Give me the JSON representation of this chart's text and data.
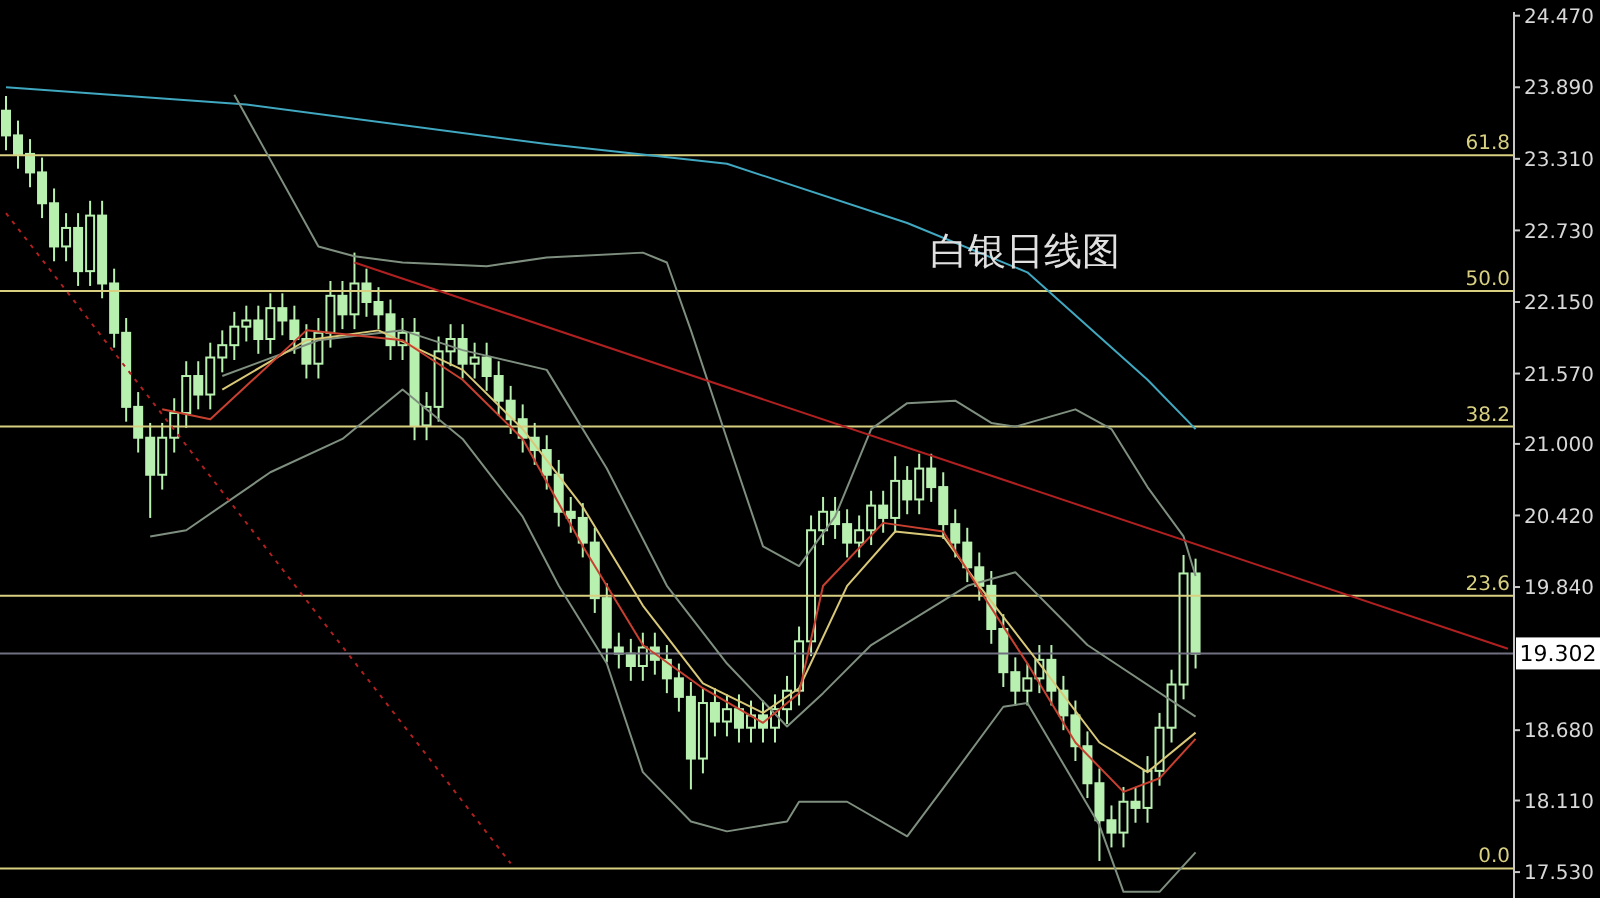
{
  "chart_data": {
    "type": "candlestick",
    "title": "白银日线图",
    "color": "#b8f0b0",
    "categories": [
      null,
      null,
      null,
      null,
      null,
      null,
      null,
      null,
      null,
      null,
      null,
      null,
      null,
      null,
      null,
      null,
      null,
      null,
      null,
      null,
      null,
      null,
      null,
      null,
      null,
      null,
      null,
      null,
      null,
      null,
      null,
      null,
      null,
      null,
      null,
      null,
      null,
      null,
      null,
      null,
      null,
      null,
      null,
      null,
      null,
      null,
      null,
      null,
      null,
      null,
      null,
      null,
      null,
      null,
      null,
      null,
      null,
      null,
      null,
      null,
      null,
      null,
      null,
      null,
      null,
      null,
      null,
      null,
      null,
      null,
      null,
      null,
      null,
      null,
      null,
      null,
      null,
      null,
      null,
      null,
      null,
      null,
      null,
      null,
      null,
      null,
      null,
      null,
      null,
      null,
      null,
      null,
      null,
      null,
      null,
      null,
      null,
      null,
      null,
      null,
      null,
      null,
      null,
      null,
      null,
      null,
      null,
      null,
      null,
      null,
      null,
      null,
      null,
      null,
      null,
      null,
      null,
      null,
      null,
      null,
      null,
      null,
      null,
      null,
      null,
      null
    ],
    "ohlc": [
      [
        23.7,
        23.82,
        23.38,
        23.5
      ],
      [
        23.5,
        23.62,
        23.23,
        23.35
      ],
      [
        23.35,
        23.47,
        23.08,
        23.2
      ],
      [
        23.2,
        23.32,
        22.83,
        22.95
      ],
      [
        22.95,
        23.07,
        22.48,
        22.6
      ],
      [
        22.6,
        22.87,
        22.48,
        22.75
      ],
      [
        22.75,
        22.87,
        22.28,
        22.4
      ],
      [
        22.4,
        22.97,
        22.28,
        22.85
      ],
      [
        22.85,
        22.97,
        22.18,
        22.3
      ],
      [
        22.3,
        22.42,
        21.78,
        21.9
      ],
      [
        21.9,
        22.02,
        21.18,
        21.3
      ],
      [
        21.3,
        21.42,
        20.93,
        21.05
      ],
      [
        21.05,
        21.17,
        20.4,
        20.75
      ],
      [
        20.75,
        21.17,
        20.63,
        21.05
      ],
      [
        21.05,
        21.37,
        20.93,
        21.25
      ],
      [
        21.25,
        21.67,
        21.13,
        21.55
      ],
      [
        21.55,
        21.67,
        21.28,
        21.4
      ],
      [
        21.4,
        21.82,
        21.28,
        21.7
      ],
      [
        21.7,
        21.92,
        21.58,
        21.8
      ],
      [
        21.8,
        22.07,
        21.68,
        21.95
      ],
      [
        21.95,
        22.12,
        21.83,
        22.0
      ],
      [
        22.0,
        22.12,
        21.73,
        21.85
      ],
      [
        21.85,
        22.22,
        21.73,
        22.1
      ],
      [
        22.1,
        22.22,
        21.88,
        22.0
      ],
      [
        22.0,
        22.12,
        21.73,
        21.85
      ],
      [
        21.85,
        21.97,
        21.53,
        21.65
      ],
      [
        21.65,
        22.02,
        21.53,
        21.9
      ],
      [
        21.9,
        22.32,
        21.78,
        22.2
      ],
      [
        22.2,
        22.32,
        21.93,
        22.05
      ],
      [
        22.05,
        22.55,
        21.93,
        22.3
      ],
      [
        22.3,
        22.42,
        22.03,
        22.15
      ],
      [
        22.15,
        22.27,
        21.93,
        22.05
      ],
      [
        22.05,
        22.17,
        21.68,
        21.8
      ],
      [
        21.8,
        22.02,
        21.68,
        21.9
      ],
      [
        21.9,
        22.02,
        21.03,
        21.15
      ],
      [
        21.15,
        21.42,
        21.03,
        21.3
      ],
      [
        21.3,
        21.87,
        21.18,
        21.75
      ],
      [
        21.75,
        21.97,
        21.63,
        21.85
      ],
      [
        21.85,
        21.97,
        21.53,
        21.65
      ],
      [
        21.65,
        21.82,
        21.53,
        21.7
      ],
      [
        21.7,
        21.82,
        21.43,
        21.55
      ],
      [
        21.55,
        21.67,
        21.23,
        21.35
      ],
      [
        21.35,
        21.47,
        21.08,
        21.2
      ],
      [
        21.2,
        21.32,
        20.93,
        21.05
      ],
      [
        21.05,
        21.17,
        20.83,
        20.95
      ],
      [
        20.95,
        21.07,
        20.63,
        20.75
      ],
      [
        20.75,
        20.87,
        20.33,
        20.45
      ],
      [
        20.45,
        20.57,
        20.28,
        20.4
      ],
      [
        20.4,
        20.52,
        20.08,
        20.2
      ],
      [
        20.2,
        20.32,
        19.63,
        19.75
      ],
      [
        19.75,
        19.87,
        19.23,
        19.35
      ],
      [
        19.35,
        19.47,
        19.18,
        19.3
      ],
      [
        19.3,
        19.42,
        19.08,
        19.2
      ],
      [
        19.2,
        19.47,
        19.08,
        19.35
      ],
      [
        19.35,
        19.47,
        19.13,
        19.25
      ],
      [
        19.25,
        19.37,
        18.98,
        19.1
      ],
      [
        19.1,
        19.22,
        18.83,
        18.95
      ],
      [
        18.95,
        19.07,
        18.2,
        18.45
      ],
      [
        18.45,
        19.02,
        18.33,
        18.9
      ],
      [
        18.9,
        19.02,
        18.63,
        18.75
      ],
      [
        18.75,
        18.97,
        18.63,
        18.85
      ],
      [
        18.85,
        18.97,
        18.58,
        18.7
      ],
      [
        18.7,
        18.92,
        18.58,
        18.8
      ],
      [
        18.8,
        18.92,
        18.58,
        18.7
      ],
      [
        18.7,
        18.97,
        18.58,
        18.85
      ],
      [
        18.85,
        19.12,
        18.73,
        19.0
      ],
      [
        19.0,
        19.52,
        18.88,
        19.4
      ],
      [
        19.4,
        20.42,
        19.28,
        20.3
      ],
      [
        20.3,
        20.57,
        20.18,
        20.45
      ],
      [
        20.45,
        20.57,
        20.23,
        20.35
      ],
      [
        20.35,
        20.47,
        20.08,
        20.2
      ],
      [
        20.2,
        20.42,
        20.08,
        20.3
      ],
      [
        20.3,
        20.62,
        20.18,
        20.5
      ],
      [
        20.5,
        20.62,
        20.28,
        20.4
      ],
      [
        20.4,
        20.9,
        20.28,
        20.7
      ],
      [
        20.7,
        20.82,
        20.43,
        20.55
      ],
      [
        20.55,
        20.92,
        20.43,
        20.8
      ],
      [
        20.8,
        20.92,
        20.53,
        20.65
      ],
      [
        20.65,
        20.77,
        20.23,
        20.35
      ],
      [
        20.35,
        20.47,
        20.08,
        20.2
      ],
      [
        20.2,
        20.32,
        19.88,
        20.0
      ],
      [
        20.0,
        20.12,
        19.73,
        19.85
      ],
      [
        19.85,
        19.97,
        19.38,
        19.5
      ],
      [
        19.5,
        19.62,
        19.03,
        19.15
      ],
      [
        19.15,
        19.27,
        18.88,
        19.0
      ],
      [
        19.0,
        19.22,
        18.88,
        19.1
      ],
      [
        19.1,
        19.37,
        18.98,
        19.25
      ],
      [
        19.25,
        19.37,
        18.88,
        19.0
      ],
      [
        19.0,
        19.12,
        18.68,
        18.8
      ],
      [
        18.8,
        18.92,
        18.43,
        18.55
      ],
      [
        18.55,
        18.67,
        18.13,
        18.25
      ],
      [
        18.25,
        18.37,
        17.62,
        17.95
      ],
      [
        17.95,
        18.07,
        17.73,
        17.85
      ],
      [
        17.85,
        18.22,
        17.73,
        18.1
      ],
      [
        18.1,
        18.22,
        17.93,
        18.05
      ],
      [
        18.05,
        18.47,
        17.93,
        18.35
      ],
      [
        18.35,
        18.82,
        18.23,
        18.7
      ],
      [
        18.7,
        19.17,
        18.58,
        19.05
      ],
      [
        19.05,
        20.1,
        18.93,
        19.95
      ],
      [
        19.95,
        20.07,
        19.18,
        19.3
      ],
      null,
      null,
      null,
      null,
      null,
      null,
      null,
      null,
      null,
      null,
      null,
      null,
      null,
      null,
      null,
      null,
      null,
      null,
      null,
      null,
      null,
      null,
      null,
      null,
      null,
      null
    ],
    "series": [
      {
        "type": "line",
        "color": "#40a8c0",
        "values": [
          23.89,
          null,
          null,
          null,
          null,
          null,
          null,
          null,
          null,
          null,
          null,
          null,
          null,
          null,
          null,
          null,
          null,
          null,
          null,
          null,
          23.75,
          null,
          null,
          null,
          null,
          null,
          null,
          null,
          null,
          null,
          null,
          null,
          null,
          null,
          null,
          null,
          null,
          null,
          null,
          null,
          null,
          null,
          null,
          null,
          null,
          23.43,
          null,
          null,
          null,
          null,
          null,
          null,
          null,
          null,
          null,
          null,
          null,
          null,
          null,
          null,
          23.27,
          null,
          null,
          null,
          null,
          null,
          null,
          null,
          null,
          null,
          null,
          null,
          null,
          null,
          null,
          22.79,
          null,
          null,
          null,
          null,
          null,
          null,
          null,
          null,
          null,
          22.39,
          null,
          null,
          null,
          null,
          null,
          null,
          null,
          null,
          null,
          21.52,
          null,
          null,
          null,
          21.12,
          null,
          null,
          null,
          null,
          null,
          null,
          null,
          null,
          null,
          null,
          null,
          null,
          null,
          null,
          null,
          null,
          null,
          null,
          null,
          null,
          null,
          null,
          null,
          null,
          null,
          null
        ]
      },
      {
        "type": "line",
        "color": "#7f8f7f",
        "values": [
          null,
          null,
          null,
          null,
          null,
          null,
          null,
          null,
          null,
          null,
          null,
          null,
          null,
          null,
          null,
          null,
          null,
          null,
          null,
          23.83,
          null,
          null,
          null,
          null,
          null,
          null,
          22.6,
          null,
          null,
          22.52,
          null,
          null,
          null,
          22.47,
          null,
          null,
          null,
          null,
          null,
          null,
          22.44,
          null,
          null,
          null,
          null,
          22.51,
          null,
          null,
          null,
          null,
          null,
          null,
          null,
          22.55,
          null,
          22.47,
          null,
          21.92,
          null,
          null,
          21.04,
          null,
          null,
          20.17,
          null,
          null,
          20.01,
          null,
          null,
          20.41,
          null,
          null,
          21.12,
          null,
          null,
          21.33,
          null,
          null,
          null,
          21.35,
          null,
          null,
          21.17,
          null,
          21.14,
          null,
          null,
          null,
          null,
          21.28,
          null,
          null,
          21.12,
          null,
          null,
          20.65,
          null,
          null,
          20.25,
          19.93,
          null,
          null,
          null,
          null,
          null,
          null,
          null,
          null,
          null,
          null,
          null,
          null,
          null,
          null,
          null,
          null,
          null,
          null,
          null,
          null,
          null,
          null,
          null,
          null,
          null,
          null
        ]
      },
      {
        "type": "line",
        "color": "#7f8f7f",
        "values": [
          null,
          null,
          null,
          null,
          null,
          null,
          null,
          null,
          null,
          null,
          null,
          null,
          null,
          null,
          null,
          null,
          null,
          null,
          21.55,
          null,
          null,
          null,
          null,
          null,
          null,
          null,
          21.84,
          null,
          null,
          null,
          null,
          null,
          null,
          21.92,
          null,
          null,
          null,
          null,
          21.76,
          null,
          null,
          null,
          null,
          null,
          null,
          21.6,
          null,
          null,
          null,
          null,
          20.8,
          null,
          null,
          null,
          null,
          19.85,
          null,
          null,
          null,
          null,
          19.22,
          null,
          null,
          null,
          null,
          18.71,
          null,
          null,
          18.98,
          null,
          null,
          null,
          19.37,
          null,
          null,
          null,
          null,
          null,
          null,
          null,
          19.85,
          null,
          null,
          null,
          19.96,
          null,
          null,
          null,
          null,
          null,
          19.37,
          null,
          null,
          null,
          null,
          null,
          null,
          null,
          null,
          18.79,
          null,
          null,
          null,
          null,
          null,
          null,
          null,
          null,
          null,
          null,
          null,
          null,
          null,
          null,
          null,
          null,
          null,
          null,
          null,
          null,
          null,
          null,
          null,
          null,
          null,
          null
        ]
      },
      {
        "type": "line",
        "color": "#7f8f7f",
        "values": [
          null,
          null,
          null,
          null,
          null,
          null,
          null,
          null,
          null,
          null,
          null,
          null,
          20.25,
          null,
          null,
          20.3,
          null,
          null,
          null,
          null,
          null,
          null,
          20.77,
          null,
          null,
          null,
          null,
          null,
          21.04,
          null,
          null,
          null,
          null,
          21.44,
          null,
          null,
          null,
          null,
          21.04,
          null,
          null,
          null,
          null,
          20.41,
          null,
          null,
          19.85,
          null,
          null,
          null,
          19.22,
          null,
          null,
          18.34,
          null,
          null,
          null,
          17.94,
          null,
          null,
          17.86,
          null,
          null,
          null,
          null,
          17.94,
          18.1,
          null,
          null,
          null,
          18.1,
          null,
          null,
          null,
          null,
          17.82,
          null,
          null,
          18.21,
          null,
          null,
          null,
          null,
          18.87,
          null,
          18.9,
          null,
          null,
          null,
          null,
          null,
          17.91,
          null,
          17.37,
          null,
          null,
          17.37,
          null,
          null,
          17.69,
          null,
          null,
          null,
          null,
          null,
          null,
          null,
          null,
          null,
          null,
          null,
          null,
          null,
          null,
          null,
          null,
          null,
          null,
          null,
          null,
          null,
          null,
          null,
          null,
          null,
          null
        ]
      },
      {
        "type": "line",
        "color": "#d8c878",
        "values": [
          null,
          null,
          null,
          null,
          null,
          null,
          null,
          null,
          null,
          null,
          null,
          null,
          null,
          null,
          null,
          null,
          null,
          null,
          21.44,
          null,
          null,
          null,
          null,
          null,
          null,
          21.84,
          null,
          null,
          null,
          null,
          null,
          21.92,
          null,
          null,
          null,
          null,
          null,
          null,
          21.6,
          null,
          null,
          null,
          null,
          21.12,
          null,
          null,
          null,
          null,
          20.49,
          null,
          null,
          null,
          null,
          19.69,
          null,
          null,
          null,
          null,
          19.06,
          null,
          null,
          null,
          null,
          18.82,
          null,
          null,
          19.02,
          null,
          null,
          null,
          19.85,
          null,
          null,
          null,
          20.29,
          null,
          null,
          null,
          20.25,
          null,
          null,
          19.85,
          null,
          null,
          null,
          null,
          19.22,
          null,
          null,
          null,
          null,
          18.58,
          null,
          null,
          null,
          18.34,
          null,
          null,
          null,
          18.66,
          null,
          null,
          null,
          null,
          null,
          null,
          null,
          null,
          null,
          null,
          null,
          null,
          null,
          null,
          null,
          null,
          null,
          null,
          null,
          null,
          null,
          null,
          null,
          null,
          null,
          null
        ]
      },
      {
        "type": "line",
        "color": "#c84030",
        "values": [
          null,
          null,
          null,
          null,
          null,
          null,
          null,
          null,
          null,
          null,
          null,
          null,
          null,
          21.28,
          null,
          null,
          null,
          21.2,
          null,
          null,
          null,
          null,
          null,
          null,
          null,
          21.92,
          null,
          null,
          null,
          null,
          null,
          null,
          null,
          21.84,
          null,
          null,
          null,
          null,
          21.52,
          null,
          null,
          null,
          null,
          21.04,
          null,
          null,
          null,
          null,
          20.17,
          null,
          null,
          null,
          null,
          19.37,
          null,
          null,
          null,
          null,
          19.02,
          null,
          null,
          null,
          null,
          18.74,
          null,
          null,
          18.98,
          null,
          19.85,
          null,
          null,
          null,
          null,
          20.36,
          null,
          null,
          null,
          null,
          20.29,
          null,
          null,
          19.82,
          null,
          null,
          null,
          19.22,
          null,
          null,
          null,
          18.58,
          null,
          null,
          null,
          18.18,
          null,
          null,
          18.29,
          null,
          null,
          18.61,
          null,
          null,
          null,
          null,
          null,
          null,
          null,
          null,
          null,
          null,
          null,
          null,
          null,
          null,
          null,
          null,
          null,
          null,
          null,
          null,
          null,
          null,
          null,
          null,
          null,
          null
        ]
      },
      {
        "type": "line",
        "color": "#b02020",
        "values": [
          null,
          null,
          null,
          null,
          null,
          null,
          null,
          null,
          null,
          null,
          null,
          null,
          null,
          null,
          null,
          null,
          null,
          null,
          null,
          null,
          null,
          null,
          null,
          null,
          null,
          null,
          null,
          null,
          null,
          22.47,
          null,
          null,
          null,
          null,
          null,
          null,
          null,
          null,
          null,
          null,
          null,
          null,
          null,
          null,
          null,
          null,
          null,
          null,
          null,
          null,
          null,
          null,
          null,
          null,
          null,
          null,
          null,
          null,
          null,
          null,
          null,
          null,
          null,
          null,
          null,
          null,
          null,
          null,
          null,
          null,
          null,
          null,
          null,
          null,
          null,
          null,
          null,
          null,
          null,
          null,
          null,
          null,
          null,
          null,
          null,
          null,
          null,
          null,
          null,
          null,
          null,
          null,
          null,
          null,
          null,
          null,
          null,
          null,
          null,
          null,
          null,
          null,
          null,
          null,
          null,
          null,
          null,
          null,
          null,
          null,
          null,
          null,
          null,
          null,
          null,
          null,
          null,
          null,
          null,
          null,
          null,
          null,
          null,
          null,
          null,
          19.34
        ]
      },
      {
        "type": "line",
        "color": "#b02020",
        "line_style": "dotted",
        "values": [
          22.87,
          null,
          null,
          null,
          null,
          null,
          null,
          null,
          null,
          null,
          null,
          null,
          null,
          null,
          null,
          null,
          null,
          null,
          null,
          null,
          null,
          null,
          null,
          null,
          null,
          null,
          null,
          null,
          null,
          null,
          null,
          null,
          null,
          null,
          null,
          null,
          null,
          null,
          null,
          null,
          null,
          null,
          17.6,
          null,
          null,
          null,
          null,
          null,
          null,
          null,
          null,
          null,
          null,
          null,
          null,
          null,
          null,
          null,
          null,
          null,
          null,
          null,
          null,
          null,
          null,
          null,
          null,
          null,
          null,
          null,
          null,
          null,
          null,
          null,
          null,
          null,
          null,
          null,
          null,
          null,
          null,
          null,
          null,
          null,
          null,
          null,
          null,
          null,
          null,
          null,
          null,
          null,
          null,
          null,
          null,
          null,
          null,
          null,
          null,
          null,
          null,
          null,
          null,
          null,
          null,
          null,
          null,
          null,
          null,
          null,
          null,
          null,
          null,
          null,
          null,
          null,
          null,
          null,
          null,
          null,
          null,
          null,
          null,
          null,
          null,
          null
        ]
      }
    ],
    "ylim": [
      17.32,
      24.5
    ],
    "yticks": [
      {
        "value": 17.53,
        "label": "17.530"
      },
      {
        "value": 18.11,
        "label": "18.110"
      },
      {
        "value": 18.68,
        "label": "18.680"
      },
      {
        "value": 19.84,
        "label": "19.840"
      },
      {
        "value": 20.42,
        "label": "20.420"
      },
      {
        "value": 21.0,
        "label": "21.000"
      },
      {
        "value": 21.57,
        "label": "21.570"
      },
      {
        "value": 22.15,
        "label": "22.150"
      },
      {
        "value": 22.73,
        "label": "22.730"
      },
      {
        "value": 23.31,
        "label": "23.310"
      },
      {
        "value": 23.89,
        "label": "23.890"
      },
      {
        "value": 24.47,
        "label": "24.470"
      }
    ],
    "tick_labels": "y",
    "annotations": [
      {
        "text": "61.8",
        "y": 23.34
      },
      {
        "text": "50.0",
        "y": 22.24
      },
      {
        "text": "38.2",
        "y": 21.14
      },
      {
        "text": "23.6",
        "y": 19.77
      },
      {
        "text": "0.0",
        "y": 17.56
      }
    ],
    "ref_lines": [
      {
        "axis": "y",
        "value": 23.34,
        "color": "#d8d080"
      },
      {
        "axis": "y",
        "value": 22.24,
        "color": "#d8d080"
      },
      {
        "axis": "y",
        "value": 21.14,
        "color": "#d8d080"
      },
      {
        "axis": "y",
        "value": 19.77,
        "color": "#d8d080"
      },
      {
        "axis": "y",
        "value": 17.56,
        "color": "#d8d080"
      },
      {
        "axis": "y",
        "value": 19.302,
        "label": "19.302",
        "color": "#707080"
      }
    ]
  }
}
